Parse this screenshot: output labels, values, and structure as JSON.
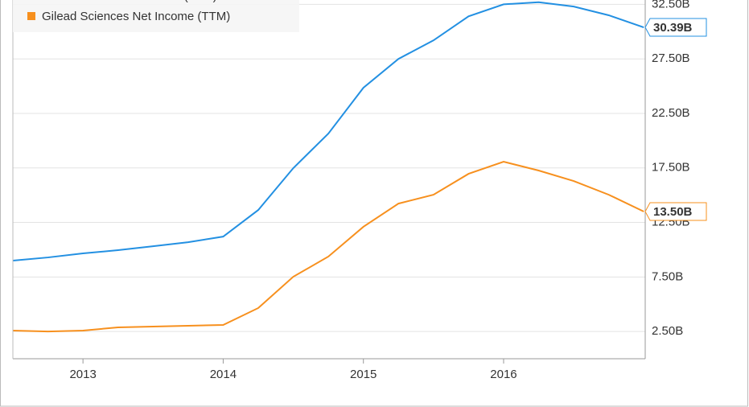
{
  "chart_data": {
    "type": "line",
    "x": [
      2012.5,
      2012.75,
      2013,
      2013.25,
      2013.5,
      2013.75,
      2014,
      2014.25,
      2014.5,
      2014.75,
      2015,
      2015.25,
      2015.5,
      2015.75,
      2016,
      2016.25,
      2016.5,
      2016.75,
      2017
    ],
    "series": [
      {
        "name": "Gilead Sciences Revenue (TTM)",
        "color": "#2390e2",
        "values": [
          9.0,
          9.29,
          9.66,
          9.96,
          10.32,
          10.69,
          11.2,
          13.64,
          17.48,
          20.65,
          24.85,
          27.5,
          29.2,
          31.4,
          32.5,
          32.7,
          32.3,
          31.5,
          30.39
        ],
        "value_labels": [
          null,
          null,
          null,
          null,
          null,
          null,
          null,
          null,
          null,
          null,
          null,
          null,
          null,
          null,
          null,
          null,
          null,
          null,
          "30.39B"
        ]
      },
      {
        "name": "Gilead Sciences Net Income (TTM)",
        "color": "#f7901e",
        "values": [
          2.58,
          2.5,
          2.58,
          2.88,
          2.95,
          3.02,
          3.1,
          4.65,
          7.52,
          9.37,
          12.1,
          14.23,
          15.04,
          16.96,
          18.07,
          17.26,
          16.3,
          15.04,
          13.5
        ],
        "value_labels": [
          null,
          null,
          null,
          null,
          null,
          null,
          null,
          null,
          null,
          null,
          null,
          null,
          null,
          null,
          null,
          null,
          null,
          null,
          "13.50B"
        ]
      }
    ],
    "xlim": [
      2012.5,
      2017.01
    ],
    "xticks": [
      2013,
      2014,
      2015,
      2016
    ],
    "ylim": [
      0,
      32.9
    ],
    "yticks": [
      {
        "value": 2.5,
        "label": "2.50B"
      },
      {
        "value": 7.5,
        "label": "7.50B"
      },
      {
        "value": 12.5,
        "label": "12.50B"
      },
      {
        "value": 17.5,
        "label": "17.50B"
      },
      {
        "value": 22.5,
        "label": "22.50B"
      },
      {
        "value": 27.5,
        "label": "27.50B"
      },
      {
        "value": 32.5,
        "label": "32.50B"
      }
    ],
    "grid": true,
    "legend": "top-left"
  }
}
